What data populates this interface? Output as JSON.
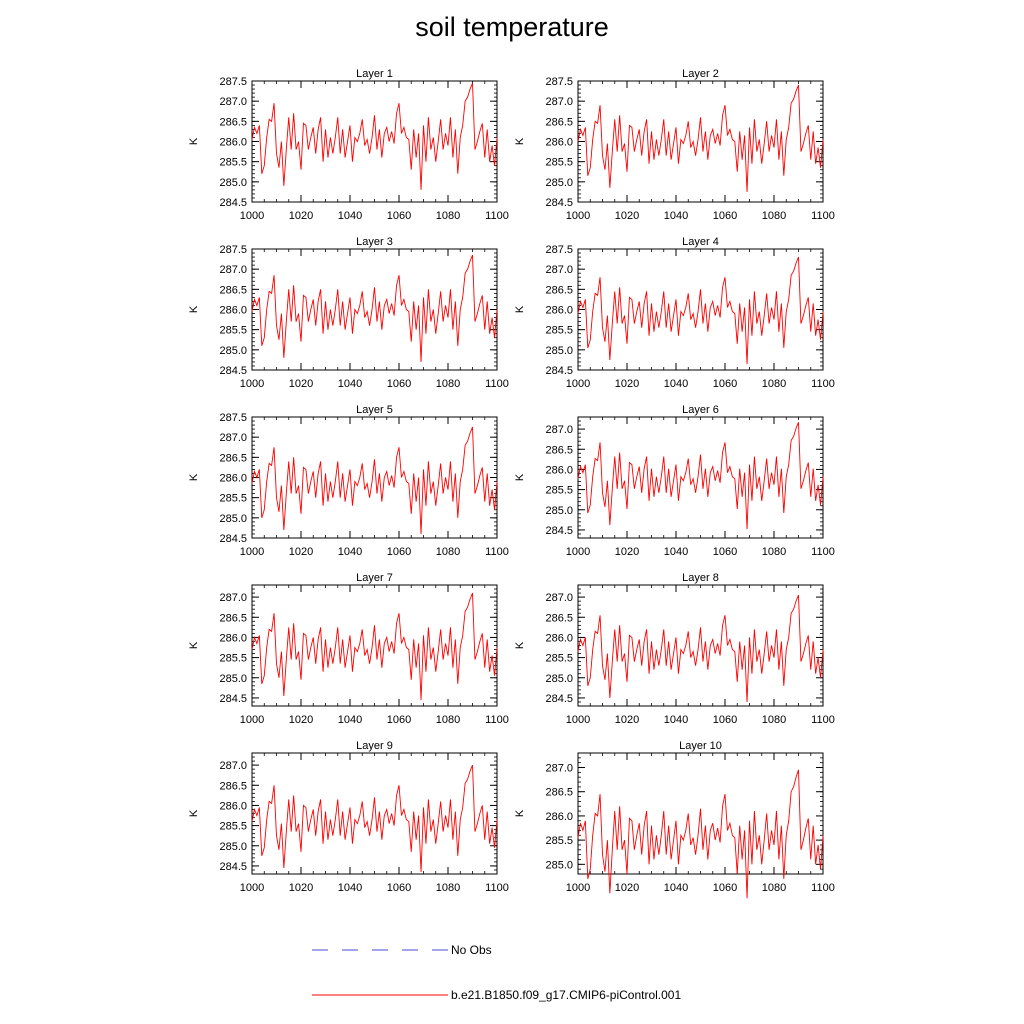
{
  "title": "soil temperature",
  "legend": {
    "obs_label": "No Obs",
    "obs_color": "#4a4ad8",
    "model_label": "b.e21.B1850.f09_g17.CMIP6-piControl.001",
    "model_color": "#ff0000"
  },
  "chart_data": {
    "type": "line",
    "xlabel": "",
    "ylabel": "K",
    "xlim": [
      1000,
      1100
    ],
    "x_ticks": [
      "1000",
      "1020",
      "1040",
      "1060",
      "1080",
      "1100"
    ],
    "x": [
      1000,
      1001,
      1002,
      1003,
      1004,
      1005,
      1006,
      1007,
      1008,
      1009,
      1010,
      1011,
      1012,
      1013,
      1014,
      1015,
      1016,
      1017,
      1018,
      1019,
      1020,
      1021,
      1022,
      1023,
      1024,
      1025,
      1026,
      1027,
      1028,
      1029,
      1030,
      1031,
      1032,
      1033,
      1034,
      1035,
      1036,
      1037,
      1038,
      1039,
      1040,
      1041,
      1042,
      1043,
      1044,
      1045,
      1046,
      1047,
      1048,
      1049,
      1050,
      1051,
      1052,
      1053,
      1054,
      1055,
      1056,
      1057,
      1058,
      1059,
      1060,
      1061,
      1062,
      1063,
      1064,
      1065,
      1066,
      1067,
      1068,
      1069,
      1070,
      1071,
      1072,
      1073,
      1074,
      1075,
      1076,
      1077,
      1078,
      1079,
      1080,
      1081,
      1082,
      1083,
      1084,
      1085,
      1086,
      1087,
      1088,
      1089,
      1090,
      1091,
      1092,
      1093,
      1094,
      1095,
      1096,
      1097,
      1098,
      1099,
      1100
    ],
    "base_values": [
      286.05,
      286.35,
      286.2,
      286.4,
      285.2,
      285.4,
      286.1,
      286.55,
      286.5,
      286.95,
      285.7,
      285.35,
      286.0,
      284.9,
      285.8,
      286.6,
      285.8,
      286.7,
      285.8,
      286.0,
      285.3,
      286.45,
      286.4,
      285.8,
      286.1,
      286.35,
      285.7,
      286.3,
      286.6,
      285.5,
      286.3,
      285.6,
      286.1,
      285.7,
      286.1,
      286.6,
      285.7,
      286.3,
      285.6,
      286.0,
      286.4,
      285.5,
      286.1,
      286.0,
      286.2,
      286.55,
      285.9,
      286.05,
      285.7,
      286.1,
      286.65,
      285.8,
      286.3,
      285.6,
      286.2,
      286.35,
      286.0,
      286.25,
      285.95,
      286.7,
      286.95,
      286.2,
      286.35,
      286.1,
      286.05,
      285.3,
      286.3,
      285.6,
      286.2,
      284.8,
      286.4,
      285.5,
      286.6,
      285.8,
      286.1,
      285.5,
      286.0,
      286.55,
      285.8,
      286.2,
      285.9,
      286.6,
      285.6,
      286.3,
      285.2,
      286.1,
      286.4,
      287.0,
      287.1,
      287.3,
      287.45,
      285.8,
      286.0,
      286.25,
      286.45,
      285.6,
      286.3,
      285.5,
      285.9,
      285.4,
      286.1
    ],
    "series": [
      {
        "name": "Layer 1",
        "offset": 0.0,
        "ylim": [
          284.5,
          287.5
        ],
        "yticks": [
          "284.5",
          "285.0",
          "285.5",
          "286.0",
          "286.5",
          "287.0",
          "287.5"
        ]
      },
      {
        "name": "Layer 2",
        "offset": -0.05,
        "ylim": [
          284.5,
          287.5
        ],
        "yticks": [
          "284.5",
          "285.0",
          "285.5",
          "286.0",
          "286.5",
          "287.0",
          "287.5"
        ]
      },
      {
        "name": "Layer 3",
        "offset": -0.1,
        "ylim": [
          284.5,
          287.5
        ],
        "yticks": [
          "284.5",
          "285.0",
          "285.5",
          "286.0",
          "286.5",
          "287.0",
          "287.5"
        ]
      },
      {
        "name": "Layer 4",
        "offset": -0.15,
        "ylim": [
          284.5,
          287.5
        ],
        "yticks": [
          "284.5",
          "285.0",
          "285.5",
          "286.0",
          "286.5",
          "287.0",
          "287.5"
        ]
      },
      {
        "name": "Layer 5",
        "offset": -0.2,
        "ylim": [
          284.5,
          287.5
        ],
        "yticks": [
          "284.5",
          "285.0",
          "285.5",
          "286.0",
          "286.5",
          "287.0",
          "287.5"
        ]
      },
      {
        "name": "Layer 6",
        "offset": -0.28,
        "ylim": [
          284.3,
          287.3
        ],
        "yticks": [
          "284.5",
          "285.0",
          "285.5",
          "286.0",
          "286.5",
          "287.0"
        ]
      },
      {
        "name": "Layer 7",
        "offset": -0.35,
        "ylim": [
          284.3,
          287.3
        ],
        "yticks": [
          "284.5",
          "285.0",
          "285.5",
          "286.0",
          "286.5",
          "287.0"
        ]
      },
      {
        "name": "Layer 8",
        "offset": -0.4,
        "ylim": [
          284.3,
          287.3
        ],
        "yticks": [
          "284.5",
          "285.0",
          "285.5",
          "286.0",
          "286.5",
          "287.0"
        ]
      },
      {
        "name": "Layer 9",
        "offset": -0.45,
        "ylim": [
          284.3,
          287.3
        ],
        "yticks": [
          "284.5",
          "285.0",
          "285.5",
          "286.0",
          "286.5",
          "287.0"
        ]
      },
      {
        "name": "Layer 10",
        "offset": -0.5,
        "ylim": [
          284.8,
          287.3
        ],
        "yticks": [
          "285.0",
          "285.5",
          "286.0",
          "286.5",
          "287.0"
        ]
      }
    ]
  }
}
